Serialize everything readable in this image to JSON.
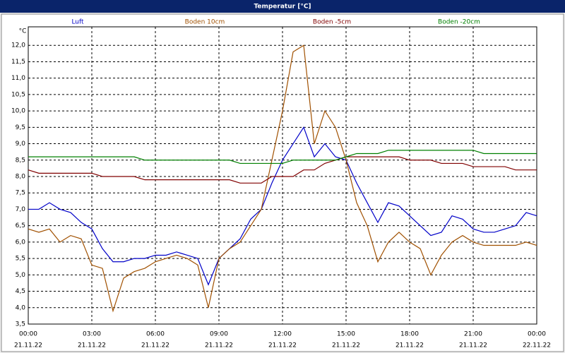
{
  "chart_data": {
    "type": "line",
    "title": "Temperatur [°C]",
    "y_unit": "°C",
    "x": [
      0,
      0.5,
      1,
      1.5,
      2,
      2.5,
      3,
      3.5,
      4,
      4.5,
      5,
      5.5,
      6,
      6.5,
      7,
      7.5,
      8,
      8.5,
      9,
      9.5,
      10,
      10.5,
      11,
      11.5,
      12,
      12.5,
      13,
      13.5,
      14,
      14.5,
      15,
      15.5,
      16,
      16.5,
      17,
      17.5,
      18,
      18.5,
      19,
      19.5,
      20,
      20.5,
      21,
      21.5,
      22,
      22.5,
      23,
      23.5,
      24
    ],
    "series": [
      {
        "name": "Luft",
        "color": "#0000c8",
        "values": [
          7.0,
          7.0,
          7.2,
          7.0,
          6.9,
          6.6,
          6.4,
          5.8,
          5.4,
          5.4,
          5.5,
          5.5,
          5.6,
          5.6,
          5.7,
          5.6,
          5.5,
          4.7,
          5.5,
          5.8,
          6.1,
          6.7,
          7.0,
          7.8,
          8.5,
          9.0,
          9.5,
          8.6,
          9.0,
          8.6,
          8.5,
          7.8,
          7.2,
          6.6,
          7.2,
          7.1,
          6.8,
          6.5,
          6.2,
          6.3,
          6.8,
          6.7,
          6.4,
          6.3,
          6.3,
          6.4,
          6.5,
          6.9,
          6.8
        ]
      },
      {
        "name": "Boden 10cm",
        "color": "#a05000",
        "values": [
          6.4,
          6.3,
          6.4,
          6.0,
          6.2,
          6.1,
          5.3,
          5.2,
          3.9,
          4.9,
          5.1,
          5.2,
          5.4,
          5.5,
          5.6,
          5.5,
          5.3,
          4.0,
          5.5,
          5.8,
          6.0,
          6.5,
          7.0,
          8.5,
          10.0,
          11.8,
          12.0,
          9.0,
          10.0,
          9.5,
          8.5,
          7.2,
          6.5,
          5.4,
          6.0,
          6.3,
          6.0,
          5.8,
          5.0,
          5.6,
          6.0,
          6.2,
          6.0,
          5.9,
          5.9,
          5.9,
          5.9,
          6.0,
          5.9
        ]
      },
      {
        "name": "Boden -5cm",
        "color": "#800000",
        "values": [
          8.2,
          8.1,
          8.1,
          8.1,
          8.1,
          8.1,
          8.1,
          8.0,
          8.0,
          8.0,
          8.0,
          7.9,
          7.9,
          7.9,
          7.9,
          7.9,
          7.9,
          7.9,
          7.9,
          7.9,
          7.8,
          7.8,
          7.8,
          8.0,
          8.0,
          8.0,
          8.2,
          8.2,
          8.4,
          8.5,
          8.6,
          8.6,
          8.6,
          8.6,
          8.6,
          8.6,
          8.5,
          8.5,
          8.5,
          8.4,
          8.4,
          8.4,
          8.3,
          8.3,
          8.3,
          8.3,
          8.2,
          8.2,
          8.2
        ]
      },
      {
        "name": "Boden -20cm",
        "color": "#008000",
        "values": [
          8.6,
          8.6,
          8.6,
          8.6,
          8.6,
          8.6,
          8.6,
          8.6,
          8.6,
          8.6,
          8.6,
          8.5,
          8.5,
          8.5,
          8.5,
          8.5,
          8.5,
          8.5,
          8.5,
          8.5,
          8.4,
          8.4,
          8.4,
          8.4,
          8.4,
          8.5,
          8.5,
          8.5,
          8.5,
          8.5,
          8.6,
          8.7,
          8.7,
          8.7,
          8.8,
          8.8,
          8.8,
          8.8,
          8.8,
          8.8,
          8.8,
          8.8,
          8.8,
          8.7,
          8.7,
          8.7,
          8.7,
          8.7,
          8.7
        ]
      }
    ],
    "xlim": [
      0,
      24
    ],
    "xticks": [
      {
        "value": 0,
        "label": "00:00"
      },
      {
        "value": 3,
        "label": "03:00"
      },
      {
        "value": 6,
        "label": "06:00"
      },
      {
        "value": 9,
        "label": "09:00"
      },
      {
        "value": 12,
        "label": "12:00"
      },
      {
        "value": 15,
        "label": "15:00"
      },
      {
        "value": 18,
        "label": "18:00"
      },
      {
        "value": 21,
        "label": "21:00"
      },
      {
        "value": 24,
        "label": "00:00"
      }
    ],
    "xtick_dates": [
      "21.11.22",
      "21.11.22",
      "21.11.22",
      "21.11.22",
      "21.11.22",
      "21.11.22",
      "21.11.22",
      "21.11.22",
      "22.11.22"
    ],
    "ylim": [
      3.5,
      12.5
    ],
    "yticks": [
      {
        "value": 3.5,
        "label": "3,5"
      },
      {
        "value": 4,
        "label": "4,0"
      },
      {
        "value": 4.5,
        "label": "4,5"
      },
      {
        "value": 5,
        "label": "5,0"
      },
      {
        "value": 5.5,
        "label": "5,5"
      },
      {
        "value": 6,
        "label": "6,0"
      },
      {
        "value": 6.5,
        "label": "6,5"
      },
      {
        "value": 7,
        "label": "7,0"
      },
      {
        "value": 7.5,
        "label": "7,5"
      },
      {
        "value": 8,
        "label": "8,0"
      },
      {
        "value": 8.5,
        "label": "8,5"
      },
      {
        "value": 9,
        "label": "9,0"
      },
      {
        "value": 9.5,
        "label": "9,5"
      },
      {
        "value": 10,
        "label": "10,0"
      },
      {
        "value": 10.5,
        "label": "10,5"
      },
      {
        "value": 11,
        "label": "11,0"
      },
      {
        "value": 11.5,
        "label": "11,5"
      },
      {
        "value": 12,
        "label": "12,0"
      }
    ],
    "grid": true
  }
}
